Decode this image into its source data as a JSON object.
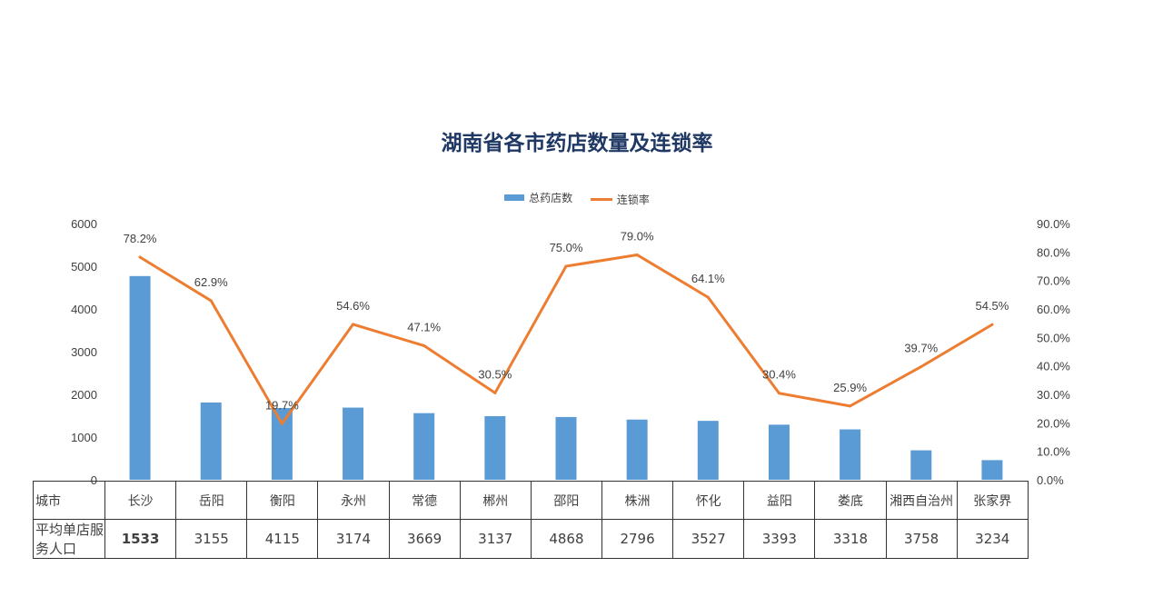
{
  "chart_data": {
    "type": "bar+line",
    "title": "湖南省各市药店数量及连锁率",
    "categories": [
      "长沙",
      "岳阳",
      "衡阳",
      "永州",
      "常德",
      "郴州",
      "邵阳",
      "株洲",
      "怀化",
      "益阳",
      "娄底",
      "湘西自治州",
      "张家界"
    ],
    "series": [
      {
        "name": "总药店数",
        "type": "bar",
        "axis": "left",
        "color": "#5b9bd5",
        "values": [
          4770,
          1810,
          1680,
          1690,
          1560,
          1490,
          1470,
          1410,
          1380,
          1290,
          1180,
          690,
          460
        ]
      },
      {
        "name": "连锁率",
        "type": "line",
        "axis": "right",
        "color": "#ed7d31",
        "values": [
          78.2,
          62.9,
          19.7,
          54.6,
          47.1,
          30.5,
          75.0,
          79.0,
          64.1,
          30.4,
          25.9,
          39.7,
          54.5
        ],
        "labels": [
          "78.2%",
          "62.9%",
          "19.7%",
          "54.6%",
          "47.1%",
          "30.5%",
          "75.0%",
          "79.0%",
          "64.1%",
          "30.4%",
          "25.9%",
          "39.7%",
          "54.5%"
        ]
      }
    ],
    "y_left": {
      "min": 0,
      "max": 6000,
      "ticks": [
        "0",
        "1000",
        "2000",
        "3000",
        "4000",
        "5000",
        "6000"
      ]
    },
    "y_right": {
      "min": 0,
      "max": 90,
      "ticks": [
        "0.0%",
        "10.0%",
        "20.0%",
        "30.0%",
        "40.0%",
        "50.0%",
        "60.0%",
        "70.0%",
        "80.0%",
        "90.0%"
      ]
    },
    "grid": false,
    "legend_position": "top-center",
    "data_table": {
      "row1_label": "城市",
      "row2_label": "平均单店服务人口",
      "row2_values": [
        "1533",
        "3155",
        "4115",
        "3174",
        "3669",
        "3137",
        "4868",
        "2796",
        "3527",
        "3393",
        "3318",
        "3758",
        "3234"
      ],
      "bold_index": 0
    }
  },
  "legend": {
    "bar_label": "总药店数",
    "line_label": "连锁率"
  }
}
